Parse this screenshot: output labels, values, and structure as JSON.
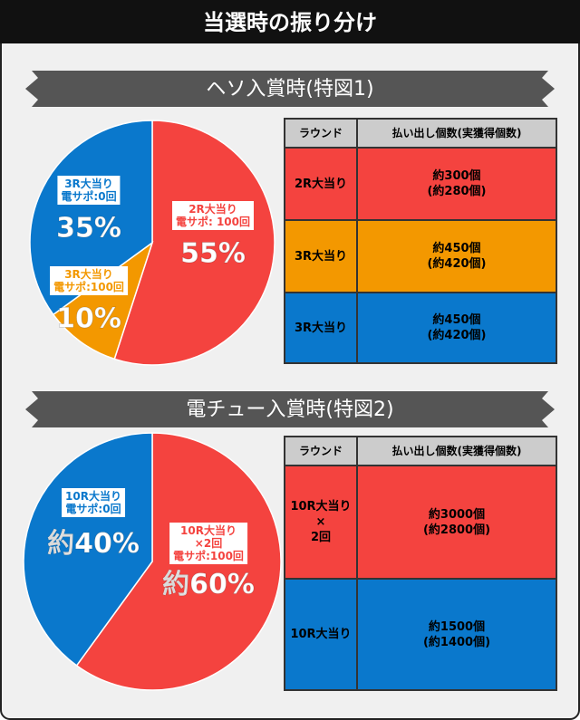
{
  "title": "当選時の振り分け",
  "chart_data": [
    {
      "type": "pie",
      "title": "ヘソ入賞時(特図1)",
      "categories": [
        "2R大当り\n電サポ: 100回",
        "3R大当り\n電サポ:100回",
        "3R大当り\n電サポ:0回"
      ],
      "values": [
        55,
        10,
        35
      ],
      "value_labels": [
        "55%",
        "10%",
        "35%"
      ],
      "colors": [
        "#f4433f",
        "#f39800",
        "#0a78cc"
      ]
    },
    {
      "type": "pie",
      "title": "電チュー入賞時(特図2)",
      "categories": [
        "10R大当り\n×2回\n電サポ:100回",
        "10R大当り\n電サポ:0回"
      ],
      "values": [
        60,
        40
      ],
      "value_labels": [
        "約60%",
        "約40%"
      ],
      "colors": [
        "#f4433f",
        "#0a78cc"
      ]
    }
  ],
  "tables": [
    {
      "header": [
        "ラウンド",
        "払い出し個数(実獲得個数)"
      ],
      "rows": [
        [
          "2R大当り",
          "約300個\n(約280個)"
        ],
        [
          "3R大当り",
          "約450個\n(約420個)"
        ],
        [
          "3R大当り",
          "約450個\n(約420個)"
        ]
      ]
    },
    {
      "header": [
        "ラウンド",
        "払い出し個数(実獲得個数)"
      ],
      "rows": [
        [
          "10R大当り\n×\n2回",
          "約3000個\n(約2800個)"
        ],
        [
          "10R大当り",
          "約1500個\n(約1400個)"
        ]
      ]
    }
  ]
}
